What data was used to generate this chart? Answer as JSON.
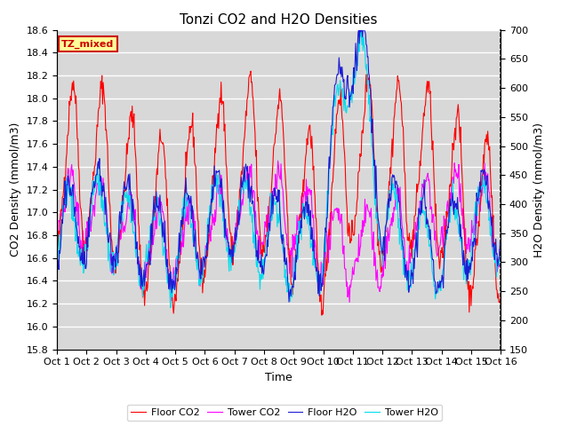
{
  "title": "Tonzi CO2 and H2O Densities",
  "xlabel": "Time",
  "ylabel_left": "CO2 Density (mmol/m3)",
  "ylabel_right": "H2O Density (mmol/m3)",
  "ylim_left": [
    15.8,
    18.6
  ],
  "ylim_right": [
    150,
    700
  ],
  "x_tick_labels": [
    "Oct 1",
    "Oct 2",
    "Oct 3",
    "Oct 4",
    "Oct 5",
    "Oct 6",
    "Oct 7",
    "Oct 8",
    "Oct 9",
    "Oct 10",
    "Oct 11",
    "Oct 12",
    "Oct 13",
    "Oct 14",
    "Oct 15",
    "Oct 16"
  ],
  "legend_labels": [
    "Floor CO2",
    "Tower CO2",
    "Floor H2O",
    "Tower H2O"
  ],
  "line_colors": [
    "#FF0000",
    "#FF00FF",
    "#1C1CD4",
    "#00DDEE"
  ],
  "annotation_text": "TZ_mixed",
  "annotation_facecolor": "#FFFF99",
  "annotation_edgecolor": "#CC0000",
  "plot_bg_color": "#D8D8D8",
  "fig_bg_color": "#FFFFFF",
  "title_fontsize": 11,
  "axis_fontsize": 9,
  "tick_fontsize": 8
}
